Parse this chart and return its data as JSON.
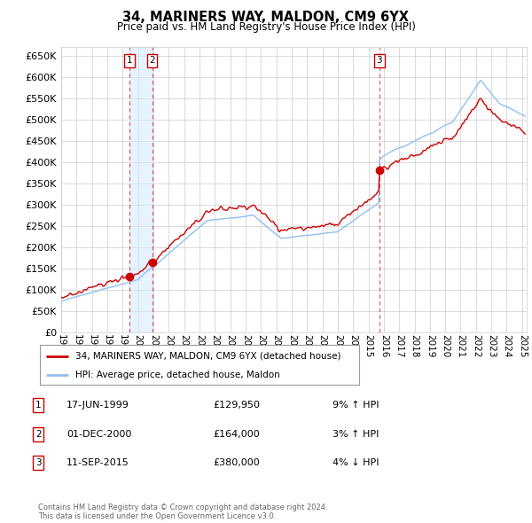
{
  "title": "34, MARINERS WAY, MALDON, CM9 6YX",
  "subtitle": "Price paid vs. HM Land Registry's House Price Index (HPI)",
  "ylabel_ticks": [
    0,
    50000,
    100000,
    150000,
    200000,
    250000,
    300000,
    350000,
    400000,
    450000,
    500000,
    550000,
    600000,
    650000
  ],
  "ylim": [
    0,
    670000
  ],
  "xlim_start": 1995.0,
  "xlim_end": 2025.3,
  "sales": [
    {
      "label": "1",
      "date_x": 1999.46,
      "price": 129950,
      "date_str": "17-JUN-1999",
      "price_str": "£129,950",
      "pct": "9%",
      "dir": "↑"
    },
    {
      "label": "2",
      "date_x": 2000.92,
      "price": 164000,
      "date_str": "01-DEC-2000",
      "price_str": "£164,000",
      "pct": "3%",
      "dir": "↑"
    },
    {
      "label": "3",
      "date_x": 2015.7,
      "price": 380000,
      "date_str": "11-SEP-2015",
      "price_str": "£380,000",
      "pct": "4%",
      "dir": "↓"
    }
  ],
  "hpi_line_color": "#90c0f0",
  "price_line_color": "#cc0000",
  "sale_marker_color": "#cc0000",
  "vline_color": "#dd3333",
  "grid_color": "#cccccc",
  "bg_color": "#ffffff",
  "legend_line1": "34, MARINERS WAY, MALDON, CM9 6YX (detached house)",
  "legend_line2": "HPI: Average price, detached house, Maldon",
  "footer": "Contains HM Land Registry data © Crown copyright and database right 2024.\nThis data is licensed under the Open Government Licence v3.0.",
  "xtick_years": [
    1995,
    1996,
    1997,
    1998,
    1999,
    2000,
    2001,
    2002,
    2003,
    2004,
    2005,
    2006,
    2007,
    2008,
    2009,
    2010,
    2011,
    2012,
    2013,
    2014,
    2015,
    2016,
    2017,
    2018,
    2019,
    2020,
    2021,
    2022,
    2023,
    2024,
    2025
  ],
  "shade_color": "#d0e8ff",
  "shade_alpha": 0.5
}
